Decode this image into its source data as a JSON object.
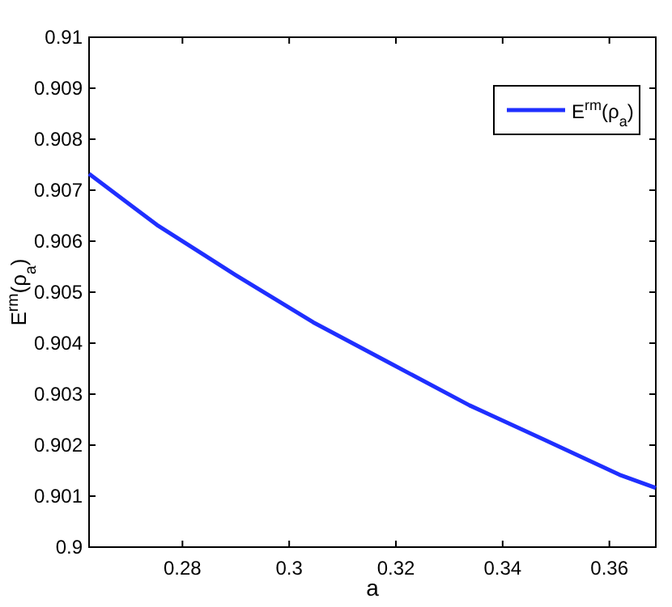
{
  "chart_data": {
    "type": "line",
    "xlabel": "a",
    "ylabel": "E$^{rm}$(ρ$_{a}$)",
    "x": [
      0.2625,
      0.2752,
      0.2899,
      0.3045,
      0.3192,
      0.3338,
      0.3477,
      0.3621,
      0.3687
    ],
    "series": [
      {
        "name": "E$^{rm}$(ρ$_{a}$)",
        "color": "#1f2fff",
        "values": [
          0.90732,
          0.90632,
          0.90534,
          0.90441,
          0.90359,
          0.90278,
          0.90211,
          0.90141,
          0.90116
        ]
      }
    ],
    "xlim": [
      0.2625,
      0.3687
    ],
    "xticks": [
      0.28,
      0.3,
      0.32,
      0.34,
      0.36
    ],
    "ylim": [
      0.9,
      0.91
    ],
    "yticks": [
      0.9,
      0.901,
      0.902,
      0.903,
      0.904,
      0.905,
      0.906,
      0.907,
      0.908,
      0.909,
      0.91
    ],
    "legend": "top right",
    "grid": false,
    "line_style": "solid",
    "marker": "none"
  }
}
